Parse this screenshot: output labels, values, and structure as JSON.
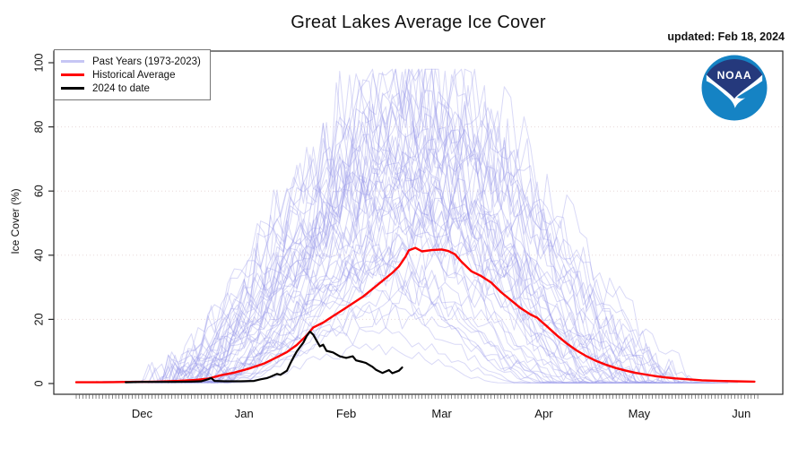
{
  "header": {
    "title": "Great Lakes Average Ice Cover",
    "updated": "updated: Feb 18, 2024",
    "logo_text": "NOAA"
  },
  "legend": {
    "items": [
      {
        "label": "Past Years (1973-2023)",
        "color": "#c6c6f4"
      },
      {
        "label": "Historical Average",
        "color": "#ff0000"
      },
      {
        "label": "2024 to date",
        "color": "#000000"
      }
    ]
  },
  "chart_data": {
    "type": "line",
    "title": "Great Lakes Average Ice Cover",
    "xlabel": "",
    "ylabel": "Ice Cover (%)",
    "ylim": [
      0,
      100
    ],
    "yticks": [
      0,
      20,
      40,
      60,
      80,
      100
    ],
    "grid_levels": [
      20,
      40,
      60,
      80
    ],
    "x_unit": "days since ~Nov 11 (daily minor ticks on x-axis)",
    "x_range_days": [
      0,
      207
    ],
    "months": [
      {
        "label": "Dec",
        "day": 20
      },
      {
        "label": "Jan",
        "day": 51
      },
      {
        "label": "Feb",
        "day": 82
      },
      {
        "label": "Mar",
        "day": 111
      },
      {
        "label": "Apr",
        "day": 142
      },
      {
        "label": "May",
        "day": 171
      },
      {
        "label": "Jun",
        "day": 202
      }
    ],
    "series": [
      {
        "name": "Historical Average",
        "color": "#ff0000",
        "width": 2.4,
        "points": [
          [
            0,
            0.4
          ],
          [
            8,
            0.4
          ],
          [
            16,
            0.5
          ],
          [
            24,
            0.6
          ],
          [
            31,
            0.8
          ],
          [
            36,
            1.1
          ],
          [
            40,
            1.5
          ],
          [
            44,
            2.6
          ],
          [
            48,
            3.4
          ],
          [
            53,
            4.8
          ],
          [
            57,
            6.2
          ],
          [
            61,
            8.2
          ],
          [
            64,
            9.8
          ],
          [
            67,
            12
          ],
          [
            70,
            15
          ],
          [
            72,
            17.5
          ],
          [
            75,
            19
          ],
          [
            78,
            21
          ],
          [
            81,
            23
          ],
          [
            84,
            25
          ],
          [
            87,
            27
          ],
          [
            90,
            29.5
          ],
          [
            93,
            32
          ],
          [
            96,
            34.5
          ],
          [
            98,
            36.5
          ],
          [
            100,
            39.5
          ],
          [
            101,
            41.5
          ],
          [
            103,
            42.3
          ],
          [
            105,
            41.2
          ],
          [
            108,
            41.6
          ],
          [
            111,
            41.8
          ],
          [
            113,
            41.3
          ],
          [
            115,
            40.3
          ],
          [
            117,
            38
          ],
          [
            120,
            35
          ],
          [
            123,
            33.5
          ],
          [
            126,
            31.5
          ],
          [
            129,
            28.5
          ],
          [
            132,
            26
          ],
          [
            135,
            23.5
          ],
          [
            138,
            21.5
          ],
          [
            140,
            20.5
          ],
          [
            143,
            17.8
          ],
          [
            146,
            15
          ],
          [
            149,
            12.5
          ],
          [
            152,
            10.3
          ],
          [
            155,
            8.5
          ],
          [
            158,
            7
          ],
          [
            161,
            5.8
          ],
          [
            164,
            4.8
          ],
          [
            167,
            4
          ],
          [
            170,
            3.3
          ],
          [
            173,
            2.8
          ],
          [
            176,
            2.3
          ],
          [
            179,
            1.9
          ],
          [
            182,
            1.6
          ],
          [
            186,
            1.3
          ],
          [
            190,
            1.0
          ],
          [
            195,
            0.8
          ],
          [
            200,
            0.7
          ],
          [
            206,
            0.6
          ]
        ]
      },
      {
        "name": "2024 to date",
        "color": "#000000",
        "width": 2.2,
        "points": [
          [
            15,
            0.4
          ],
          [
            20,
            0.5
          ],
          [
            25,
            0.5
          ],
          [
            30,
            0.5
          ],
          [
            35,
            0.6
          ],
          [
            38,
            0.7
          ],
          [
            40,
            1.3
          ],
          [
            41,
            1.7
          ],
          [
            42,
            0.8
          ],
          [
            45,
            0.7
          ],
          [
            50,
            0.7
          ],
          [
            54,
            0.8
          ],
          [
            56,
            1.3
          ],
          [
            58,
            1.7
          ],
          [
            59,
            2.1
          ],
          [
            61,
            3.0
          ],
          [
            62,
            2.7
          ],
          [
            64,
            4.0
          ],
          [
            65,
            6.2
          ],
          [
            66,
            8.2
          ],
          [
            67,
            10.0
          ],
          [
            69,
            12.8
          ],
          [
            70,
            14.8
          ],
          [
            71,
            16.2
          ],
          [
            72,
            15.2
          ],
          [
            74,
            11.6
          ],
          [
            75,
            12.1
          ],
          [
            76,
            10.2
          ],
          [
            78,
            9.7
          ],
          [
            80,
            8.5
          ],
          [
            82,
            8.0
          ],
          [
            84,
            8.5
          ],
          [
            85,
            7.2
          ],
          [
            87,
            6.7
          ],
          [
            88,
            6.4
          ],
          [
            90,
            5.2
          ],
          [
            91,
            4.3
          ],
          [
            93,
            3.3
          ],
          [
            95,
            4.2
          ],
          [
            96,
            3.2
          ],
          [
            98,
            4.0
          ],
          [
            99,
            5.0
          ]
        ]
      }
    ],
    "past_years": {
      "name": "Past Years (1973-2023)",
      "color": "#9b9bea",
      "opacity": 0.38,
      "width": 1,
      "note": "51 jagged annual traces (1973-2023); peak %, onset/peak/end days estimated from pixels, seed drives jitter",
      "years": [
        {
          "peak": 69,
          "onset": 26,
          "peak_day": 96,
          "end": 178,
          "seed": 11
        },
        {
          "peak": 60,
          "onset": 30,
          "peak_day": 104,
          "end": 170,
          "seed": 12
        },
        {
          "peak": 55,
          "onset": 33,
          "peak_day": 92,
          "end": 165,
          "seed": 13
        },
        {
          "peak": 83,
          "onset": 20,
          "peak_day": 108,
          "end": 186,
          "seed": 14
        },
        {
          "peak": 88,
          "onset": 17,
          "peak_day": 99,
          "end": 190,
          "seed": 15
        },
        {
          "peak": 94,
          "onset": 15,
          "peak_day": 103,
          "end": 196,
          "seed": 16
        },
        {
          "peak": 35,
          "onset": 38,
          "peak_day": 89,
          "end": 150,
          "seed": 17
        },
        {
          "peak": 48,
          "onset": 34,
          "peak_day": 112,
          "end": 158,
          "seed": 18
        },
        {
          "peak": 80,
          "onset": 21,
          "peak_day": 95,
          "end": 184,
          "seed": 19
        },
        {
          "peak": 73,
          "onset": 24,
          "peak_day": 106,
          "end": 176,
          "seed": 20
        },
        {
          "peak": 57,
          "onset": 31,
          "peak_day": 100,
          "end": 166,
          "seed": 21
        },
        {
          "peak": 45,
          "onset": 35,
          "peak_day": 116,
          "end": 156,
          "seed": 22
        },
        {
          "peak": 90,
          "onset": 16,
          "peak_day": 102,
          "end": 192,
          "seed": 23
        },
        {
          "peak": 76,
          "onset": 23,
          "peak_day": 94,
          "end": 180,
          "seed": 24
        },
        {
          "peak": 64,
          "onset": 28,
          "peak_day": 109,
          "end": 172,
          "seed": 25
        },
        {
          "peak": 87,
          "onset": 18,
          "peak_day": 98,
          "end": 188,
          "seed": 26
        },
        {
          "peak": 30,
          "onset": 40,
          "peak_day": 91,
          "end": 146,
          "seed": 27
        },
        {
          "peak": 50,
          "onset": 33,
          "peak_day": 105,
          "end": 160,
          "seed": 28
        },
        {
          "peak": 66,
          "onset": 27,
          "peak_day": 97,
          "end": 174,
          "seed": 29
        },
        {
          "peak": 78,
          "onset": 22,
          "peak_day": 110,
          "end": 182,
          "seed": 30
        },
        {
          "peak": 72,
          "onset": 25,
          "peak_day": 101,
          "end": 177,
          "seed": 31
        },
        {
          "peak": 61,
          "onset": 29,
          "peak_day": 93,
          "end": 169,
          "seed": 32
        },
        {
          "peak": 84,
          "onset": 19,
          "peak_day": 107,
          "end": 187,
          "seed": 33
        },
        {
          "peak": 54,
          "onset": 32,
          "peak_day": 114,
          "end": 163,
          "seed": 34
        },
        {
          "peak": 40,
          "onset": 36,
          "peak_day": 90,
          "end": 152,
          "seed": 35
        },
        {
          "peak": 38,
          "onset": 37,
          "peak_day": 103,
          "end": 151,
          "seed": 36
        },
        {
          "peak": 67,
          "onset": 26,
          "peak_day": 99,
          "end": 175,
          "seed": 37
        },
        {
          "peak": 16,
          "onset": 44,
          "peak_day": 88,
          "end": 138,
          "seed": 38
        },
        {
          "peak": 74,
          "onset": 24,
          "peak_day": 111,
          "end": 179,
          "seed": 39
        },
        {
          "peak": 58,
          "onset": 30,
          "peak_day": 96,
          "end": 167,
          "seed": 40
        },
        {
          "peak": 33,
          "onset": 39,
          "peak_day": 94,
          "end": 148,
          "seed": 41
        },
        {
          "peak": 81,
          "onset": 20,
          "peak_day": 104,
          "end": 185,
          "seed": 42
        },
        {
          "peak": 52,
          "onset": 33,
          "peak_day": 117,
          "end": 161,
          "seed": 43
        },
        {
          "peak": 91,
          "onset": 16,
          "peak_day": 100,
          "end": 193,
          "seed": 44
        },
        {
          "peak": 68,
          "onset": 26,
          "peak_day": 92,
          "end": 175,
          "seed": 45
        },
        {
          "peak": 46,
          "onset": 35,
          "peak_day": 108,
          "end": 157,
          "seed": 46
        },
        {
          "peak": 27,
          "onset": 41,
          "peak_day": 95,
          "end": 144,
          "seed": 47
        },
        {
          "peak": 88,
          "onset": 18,
          "peak_day": 113,
          "end": 189,
          "seed": 48
        },
        {
          "peak": 63,
          "onset": 28,
          "peak_day": 98,
          "end": 171,
          "seed": 49
        },
        {
          "peak": 42,
          "onset": 36,
          "peak_day": 102,
          "end": 154,
          "seed": 50
        },
        {
          "peak": 36,
          "onset": 38,
          "peak_day": 91,
          "end": 149,
          "seed": 51
        },
        {
          "peak": 79,
          "onset": 21,
          "peak_day": 106,
          "end": 183,
          "seed": 52
        },
        {
          "peak": 56,
          "onset": 31,
          "peak_day": 95,
          "end": 164,
          "seed": 53
        },
        {
          "peak": 23,
          "onset": 42,
          "peak_day": 100,
          "end": 141,
          "seed": 54
        },
        {
          "peak": 71,
          "onset": 25,
          "peak_day": 109,
          "end": 176,
          "seed": 55
        },
        {
          "peak": 11,
          "onset": 46,
          "peak_day": 90,
          "end": 132,
          "seed": 56
        },
        {
          "peak": 65,
          "onset": 27,
          "peak_day": 103,
          "end": 173,
          "seed": 57
        },
        {
          "peak": 49,
          "onset": 34,
          "peak_day": 97,
          "end": 159,
          "seed": 58
        },
        {
          "peak": 22,
          "onset": 43,
          "peak_day": 93,
          "end": 140,
          "seed": 59
        },
        {
          "peak": 31,
          "onset": 39,
          "peak_day": 107,
          "end": 147,
          "seed": 60
        },
        {
          "peak": 44,
          "onset": 35,
          "peak_day": 99,
          "end": 155,
          "seed": 61
        }
      ]
    }
  },
  "logo_colors": {
    "dark_blue": "#25397c",
    "light_blue": "#1583c4"
  }
}
